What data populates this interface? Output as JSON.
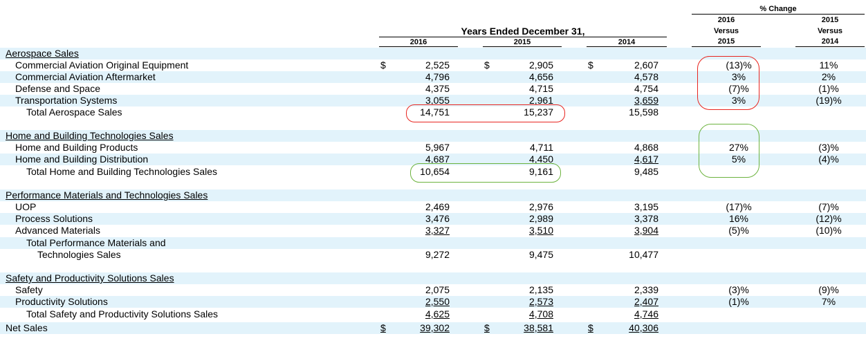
{
  "header": {
    "pct_change": "% Change",
    "years_ended": "Years Ended December 31,",
    "col_2016": "2016",
    "col_2015": "2015",
    "col_2014": "2014",
    "pc1_top": "2016",
    "pc1_mid": "Versus",
    "pc1_bot": "2015",
    "pc2_top": "2015",
    "pc2_mid": "Versus",
    "pc2_bot": "2014"
  },
  "dollar_sign": "$",
  "rows": [
    {
      "label": "Aerospace Sales",
      "type": "section",
      "shade": true
    },
    {
      "label": "Commercial Aviation Original Equipment",
      "v2016": "2,525",
      "v2015": "2,905",
      "v2014": "2,607",
      "p1": "(13)%",
      "p2": "11%",
      "dollar": true
    },
    {
      "label": "Commercial Aviation Aftermarket",
      "v2016": "4,796",
      "v2015": "4,656",
      "v2014": "4,578",
      "p1": "3%",
      "p2": "2%",
      "shade": true
    },
    {
      "label": "Defense and Space",
      "v2016": "4,375",
      "v2015": "4,715",
      "v2014": "4,754",
      "p1": "(7)%",
      "p2": "(1)%"
    },
    {
      "label": "Transportation Systems",
      "v2016": "3,055",
      "v2015": "2,961",
      "v2014": "3,659",
      "p1": "3%",
      "p2": "(19)%",
      "shade": true,
      "ul": true
    },
    {
      "label": "Total Aerospace Sales",
      "v2016": "14,751",
      "v2015": "15,237",
      "v2014": "15,598",
      "total": true
    },
    {
      "label": "Home and Building Technologies Sales",
      "type": "section",
      "shade": true
    },
    {
      "label": "Home and Building Products",
      "v2016": "5,967",
      "v2015": "4,711",
      "v2014": "4,868",
      "p1": "27%",
      "p2": "(3)%"
    },
    {
      "label": "Home and Building Distribution",
      "v2016": "4,687",
      "v2015": "4,450",
      "v2014": "4,617",
      "p1": "5%",
      "p2": "(4)%",
      "shade": true,
      "ul": true
    },
    {
      "label": "Total Home and Building Technologies Sales",
      "v2016": "10,654",
      "v2015": "9,161",
      "v2014": "9,485",
      "total": true
    },
    {
      "label": "Performance Materials and Technologies Sales",
      "type": "section",
      "shade": true
    },
    {
      "label": "UOP",
      "v2016": "2,469",
      "v2015": "2,976",
      "v2014": "3,195",
      "p1": "(17)%",
      "p2": "(7)%"
    },
    {
      "label": "Process Solutions",
      "v2016": "3,476",
      "v2015": "2,989",
      "v2014": "3,378",
      "p1": "16%",
      "p2": "(12)%",
      "shade": true
    },
    {
      "label": "Advanced Materials",
      "v2016": "3,327",
      "v2015": "3,510",
      "v2014": "3,904",
      "p1": "(5)%",
      "p2": "(10)%",
      "ul": true
    },
    {
      "label": "Total Performance Materials and",
      "total": true,
      "shade": true
    },
    {
      "label": "Technologies Sales",
      "v2016": "9,272",
      "v2015": "9,475",
      "v2014": "10,477",
      "total2": true
    },
    {
      "label": "Safety and Productivity Solutions Sales",
      "type": "section",
      "shade": true
    },
    {
      "label": "Safety",
      "v2016": "2,075",
      "v2015": "2,135",
      "v2014": "2,339",
      "p1": "(3)%",
      "p2": "(9)%"
    },
    {
      "label": "Productivity Solutions",
      "v2016": "2,550",
      "v2015": "2,573",
      "v2014": "2,407",
      "p1": "(1)%",
      "p2": "7%",
      "shade": true,
      "ul": true
    },
    {
      "label": "Total Safety and Productivity Solutions Sales",
      "v2016": "4,625",
      "v2015": "4,708",
      "v2014": "4,746",
      "total": true,
      "ul": true
    },
    {
      "label": "Net Sales",
      "v2016": "39,302",
      "v2015": "38,581",
      "v2014": "40,306",
      "dollar": true,
      "shade": true,
      "net": true
    }
  ],
  "annotations": {
    "red": "#e8251f",
    "green": "#6cb33e"
  }
}
